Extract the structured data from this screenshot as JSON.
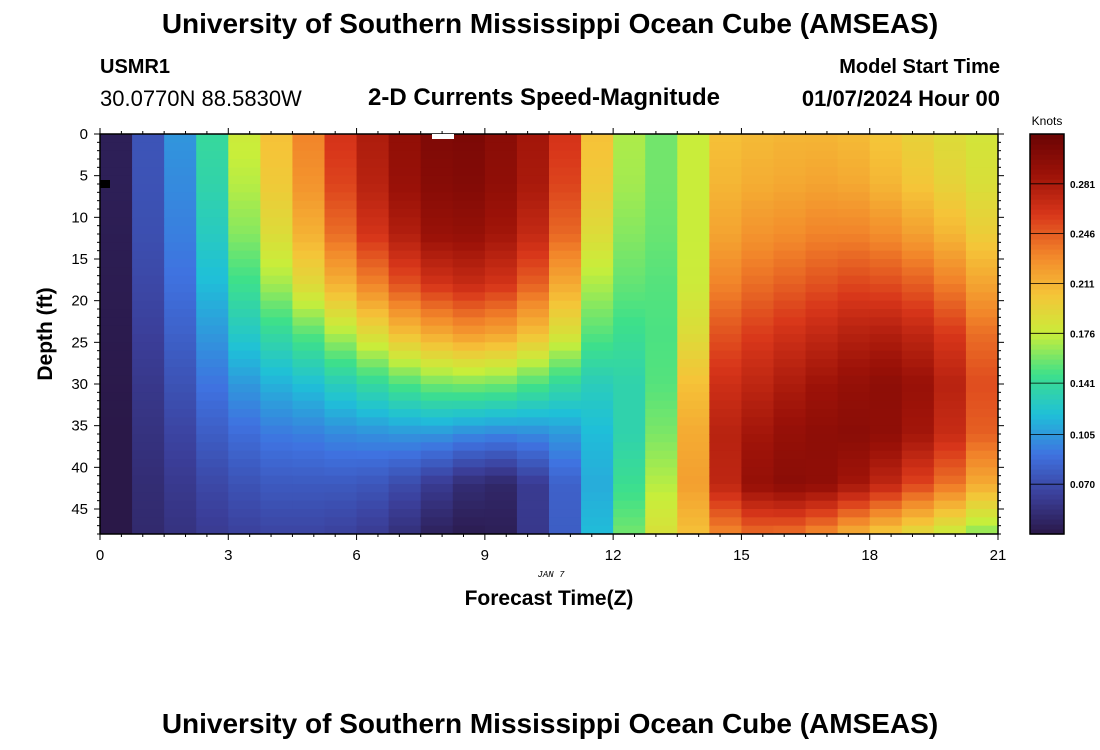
{
  "page": {
    "title": "University of Southern Mississippi Ocean Cube (AMSEAS)",
    "title_repeat": "University of Southern Mississippi Ocean Cube (AMSEAS)",
    "station_name": "USMR1",
    "station_coords": "30.0770N  88.5830W",
    "subtitle": "2-D Currents Speed-Magnitude",
    "model_start_label": "Model Start Time",
    "model_start_value": "01/07/2024 Hour 00"
  },
  "chart_data": {
    "type": "heatmap",
    "title": "2-D Currents Speed-Magnitude",
    "xlabel": "Forecast Time(Z)",
    "ylabel": "Depth (ft)",
    "date_label": "JAN 7",
    "xlim": [
      0,
      21
    ],
    "ylim": [
      0,
      48
    ],
    "y_inverted": true,
    "x_ticks": [
      0,
      3,
      6,
      9,
      12,
      15,
      18,
      21
    ],
    "y_ticks": [
      0,
      5,
      10,
      15,
      20,
      25,
      30,
      35,
      40,
      45
    ],
    "colorbar": {
      "label": "Knots",
      "ticks": [
        "0.070",
        "0.105",
        "0.141",
        "0.176",
        "0.211",
        "0.246",
        "0.281"
      ],
      "tick_values": [
        0.07,
        0.105,
        0.141,
        0.176,
        0.211,
        0.246,
        0.281
      ],
      "range": [
        0.035,
        0.316
      ],
      "stops": [
        "#2a1848",
        "#3b3f9a",
        "#3f72e0",
        "#1fc0d8",
        "#3ee08a",
        "#c8ee3a",
        "#f5c438",
        "#f2852a",
        "#d8361a",
        "#9c1208",
        "#6a0404"
      ]
    },
    "time_columns": [
      0,
      0.75,
      1.5,
      2.25,
      3,
      3.75,
      4.5,
      5.25,
      6,
      6.75,
      7.5,
      8.25,
      9,
      9.75,
      10.5,
      11.25,
      12,
      12.75,
      13.5,
      14.25,
      15,
      15.75,
      16.5,
      17.25,
      18,
      18.75,
      19.5,
      20.25
    ],
    "depth_rows": [
      0,
      6,
      12,
      18,
      24,
      30,
      36,
      42,
      48
    ],
    "speed_knots": [
      [
        0.04,
        0.04,
        0.039,
        0.038,
        0.037,
        0.036,
        0.035,
        0.035,
        0.035
      ],
      [
        0.075,
        0.074,
        0.072,
        0.068,
        0.063,
        0.058,
        0.054,
        0.05,
        0.048
      ],
      [
        0.104,
        0.1,
        0.096,
        0.09,
        0.082,
        0.074,
        0.066,
        0.059,
        0.054
      ],
      [
        0.141,
        0.136,
        0.128,
        0.118,
        0.105,
        0.092,
        0.08,
        0.068,
        0.06
      ],
      [
        0.178,
        0.172,
        0.162,
        0.146,
        0.126,
        0.105,
        0.088,
        0.074,
        0.064
      ],
      [
        0.205,
        0.2,
        0.188,
        0.168,
        0.14,
        0.114,
        0.094,
        0.078,
        0.066
      ],
      [
        0.232,
        0.225,
        0.212,
        0.19,
        0.152,
        0.12,
        0.096,
        0.078,
        0.066
      ],
      [
        0.262,
        0.255,
        0.24,
        0.212,
        0.17,
        0.13,
        0.1,
        0.078,
        0.064
      ],
      [
        0.28,
        0.275,
        0.262,
        0.232,
        0.188,
        0.14,
        0.102,
        0.076,
        0.06
      ],
      [
        0.294,
        0.29,
        0.278,
        0.25,
        0.205,
        0.15,
        0.104,
        0.07,
        0.052
      ],
      [
        0.304,
        0.3,
        0.29,
        0.262,
        0.215,
        0.158,
        0.104,
        0.06,
        0.042
      ],
      [
        0.306,
        0.302,
        0.292,
        0.268,
        0.222,
        0.16,
        0.1,
        0.05,
        0.038
      ],
      [
        0.298,
        0.295,
        0.285,
        0.262,
        0.218,
        0.158,
        0.098,
        0.046,
        0.04
      ],
      [
        0.285,
        0.282,
        0.27,
        0.245,
        0.205,
        0.15,
        0.1,
        0.06,
        0.058
      ],
      [
        0.262,
        0.255,
        0.242,
        0.215,
        0.185,
        0.14,
        0.105,
        0.082,
        0.08
      ],
      [
        0.205,
        0.2,
        0.188,
        0.17,
        0.152,
        0.13,
        0.118,
        0.112,
        0.118
      ],
      [
        0.17,
        0.168,
        0.162,
        0.155,
        0.145,
        0.135,
        0.135,
        0.145,
        0.158
      ],
      [
        0.158,
        0.158,
        0.156,
        0.152,
        0.15,
        0.152,
        0.16,
        0.172,
        0.185
      ],
      [
        0.176,
        0.176,
        0.176,
        0.178,
        0.188,
        0.205,
        0.215,
        0.22,
        0.205
      ],
      [
        0.205,
        0.21,
        0.218,
        0.232,
        0.25,
        0.265,
        0.275,
        0.272,
        0.23
      ],
      [
        0.208,
        0.214,
        0.225,
        0.24,
        0.258,
        0.272,
        0.285,
        0.292,
        0.24
      ],
      [
        0.21,
        0.216,
        0.228,
        0.245,
        0.264,
        0.28,
        0.292,
        0.298,
        0.238
      ],
      [
        0.21,
        0.218,
        0.232,
        0.25,
        0.27,
        0.287,
        0.296,
        0.295,
        0.228
      ],
      [
        0.208,
        0.216,
        0.232,
        0.254,
        0.276,
        0.292,
        0.298,
        0.285,
        0.212
      ],
      [
        0.202,
        0.21,
        0.228,
        0.252,
        0.278,
        0.296,
        0.295,
        0.272,
        0.2
      ],
      [
        0.195,
        0.202,
        0.22,
        0.246,
        0.272,
        0.29,
        0.285,
        0.255,
        0.188
      ],
      [
        0.188,
        0.194,
        0.21,
        0.234,
        0.26,
        0.275,
        0.268,
        0.238,
        0.176
      ],
      [
        0.182,
        0.186,
        0.198,
        0.218,
        0.24,
        0.252,
        0.245,
        0.215,
        0.162
      ]
    ]
  }
}
